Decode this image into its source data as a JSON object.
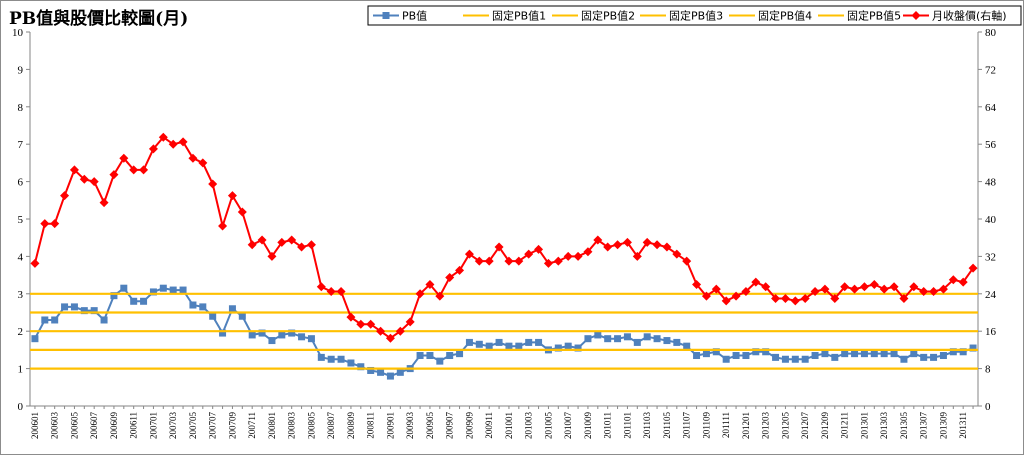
{
  "chart_data": {
    "type": "line",
    "title": "PB值與股價比較圖(月)",
    "xlabel": "",
    "ylabel_left": "",
    "ylabel_right": "",
    "ylim_left": [
      0,
      10
    ],
    "ylim_right": [
      0,
      80
    ],
    "yticks_left": [
      "0",
      "1",
      "2",
      "3",
      "4",
      "5",
      "6",
      "7",
      "8",
      "9",
      "10"
    ],
    "yticks_right": [
      "0",
      "8",
      "16",
      "24",
      "32",
      "40",
      "48",
      "56",
      "64",
      "72",
      "80"
    ],
    "grid": false,
    "legend_position": "top-right",
    "x": [
      "200601",
      "200602",
      "200603",
      "200604",
      "200605",
      "200606",
      "200607",
      "200608",
      "200609",
      "200610",
      "200611",
      "200612",
      "200701",
      "200702",
      "200703",
      "200704",
      "200705",
      "200706",
      "200707",
      "200708",
      "200709",
      "200710",
      "200711",
      "200712",
      "200801",
      "200802",
      "200803",
      "200804",
      "200805",
      "200806",
      "200807",
      "200808",
      "200809",
      "200810",
      "200811",
      "200812",
      "200901",
      "200902",
      "200903",
      "200904",
      "200905",
      "200906",
      "200907",
      "200908",
      "200909",
      "200910",
      "200911",
      "200912",
      "201001",
      "201002",
      "201003",
      "201004",
      "201005",
      "201006",
      "201007",
      "201008",
      "201009",
      "201010",
      "201011",
      "201012",
      "201101",
      "201102",
      "201103",
      "201104",
      "201105",
      "201106",
      "201107",
      "201108",
      "201109",
      "201110",
      "201111",
      "201112",
      "201201",
      "201202",
      "201203",
      "201204",
      "201205",
      "201206",
      "201207",
      "201208",
      "201209",
      "201210",
      "201211",
      "201212",
      "201301",
      "201302",
      "201303",
      "201304",
      "201305",
      "201306",
      "201307",
      "201308",
      "201309",
      "201310",
      "201311",
      "201312"
    ],
    "x_tick_labels": [
      "200601",
      "200603",
      "200605",
      "200607",
      "200609",
      "200611",
      "200701",
      "200703",
      "200705",
      "200707",
      "200709",
      "200711",
      "200801",
      "200803",
      "200805",
      "200807",
      "200809",
      "200811",
      "200901",
      "200903",
      "200905",
      "200907",
      "200909",
      "200911",
      "201001",
      "201003",
      "201005",
      "201007",
      "201009",
      "201011",
      "201101",
      "201103",
      "201105",
      "201107",
      "201109",
      "201111",
      "201201",
      "201203",
      "201205",
      "201207",
      "201209",
      "201211",
      "201301",
      "201303",
      "201305",
      "201307",
      "201309",
      "201311"
    ],
    "series": [
      {
        "name": "PB值",
        "axis": "left",
        "color": "#4f81bd",
        "marker": "square",
        "values": [
          1.8,
          2.3,
          2.3,
          2.65,
          2.65,
          2.55,
          2.55,
          2.3,
          2.95,
          3.15,
          2.8,
          2.8,
          3.05,
          3.15,
          3.1,
          3.1,
          2.7,
          2.65,
          2.4,
          1.95,
          2.6,
          2.4,
          1.9,
          1.95,
          1.75,
          1.9,
          1.95,
          1.85,
          1.8,
          1.3,
          1.25,
          1.25,
          1.15,
          1.05,
          0.95,
          0.9,
          0.8,
          0.9,
          1.0,
          1.35,
          1.35,
          1.2,
          1.35,
          1.4,
          1.7,
          1.65,
          1.6,
          1.7,
          1.6,
          1.6,
          1.7,
          1.7,
          1.5,
          1.55,
          1.6,
          1.55,
          1.8,
          1.9,
          1.8,
          1.8,
          1.85,
          1.7,
          1.85,
          1.8,
          1.75,
          1.7,
          1.6,
          1.35,
          1.4,
          1.45,
          1.25,
          1.35,
          1.35,
          1.45,
          1.45,
          1.3,
          1.25,
          1.25,
          1.25,
          1.35,
          1.4,
          1.3,
          1.4,
          1.4,
          1.4,
          1.4,
          1.4,
          1.4,
          1.25,
          1.4,
          1.3,
          1.3,
          1.35,
          1.45,
          1.45,
          1.55
        ]
      },
      {
        "name": "固定PB值1",
        "axis": "left",
        "color": "#ffc000",
        "constant": 1.0
      },
      {
        "name": "固定PB值2",
        "axis": "left",
        "color": "#ffc000",
        "constant": 1.5
      },
      {
        "name": "固定PB值3",
        "axis": "left",
        "color": "#ffc000",
        "constant": 2.0
      },
      {
        "name": "固定PB值4",
        "axis": "left",
        "color": "#ffc000",
        "constant": 2.5
      },
      {
        "name": "固定PB值5",
        "axis": "left",
        "color": "#ffc000",
        "constant": 3.0
      },
      {
        "name": "月收盤價(右軸)",
        "axis": "right",
        "color": "#ff0000",
        "marker": "diamond",
        "values": [
          30.5,
          39,
          39,
          45,
          50.5,
          48.5,
          48,
          43.5,
          49.5,
          53,
          50.5,
          50.5,
          55,
          57.5,
          56,
          56.5,
          53,
          52,
          47.5,
          38.5,
          45,
          41.5,
          34.5,
          35.5,
          32,
          35,
          35.5,
          34,
          34.5,
          25.5,
          24.5,
          24.5,
          19,
          17.5,
          17.5,
          16,
          14.5,
          16,
          18,
          24,
          26,
          23.5,
          27.5,
          29,
          32.5,
          31,
          31,
          34,
          31,
          31,
          32.5,
          33.5,
          30.5,
          31,
          32,
          32,
          33,
          35.5,
          34,
          34.5,
          35,
          32,
          35,
          34.5,
          34,
          32.5,
          31,
          26,
          23.5,
          25,
          22.5,
          23.5,
          24.5,
          26.5,
          25.5,
          23,
          23,
          22.5,
          23,
          24.5,
          25,
          23,
          25.5,
          25,
          25.5,
          26,
          25,
          25.5,
          23,
          25.5,
          24.5,
          24.5,
          25,
          27,
          26.5,
          29.5
        ]
      }
    ]
  }
}
